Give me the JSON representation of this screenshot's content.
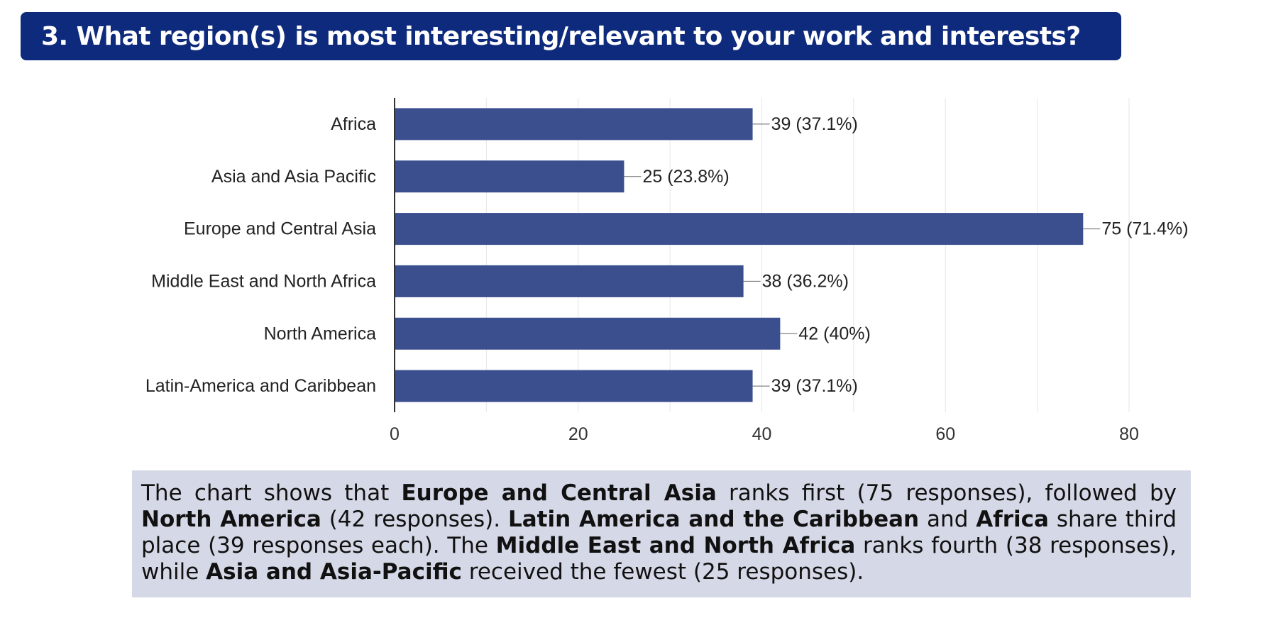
{
  "header": {
    "title": "3. What region(s) is most interesting/relevant to your work and interests?"
  },
  "chart_data": {
    "type": "bar",
    "orientation": "horizontal",
    "categories": [
      "Africa",
      "Asia and Asia Pacific",
      "Europe and Central Asia",
      "Middle East and North Africa",
      "North America",
      "Latin-America and Caribbean"
    ],
    "values": [
      39,
      25,
      75,
      38,
      42,
      39
    ],
    "data_labels": [
      "39 (37.1%)",
      "25 (23.8%)",
      "75 (71.4%)",
      "38 (36.2%)",
      "42 (40%)",
      "39 (37.1%)"
    ],
    "xlim": [
      0,
      80
    ],
    "xticks": [
      "0",
      "20",
      "40",
      "60",
      "80"
    ],
    "grid": true,
    "bar_color": "#3b4f8e",
    "title": "",
    "xlabel": "",
    "ylabel": ""
  },
  "summary": {
    "segments": [
      {
        "text": "The chart shows that ",
        "bold": false
      },
      {
        "text": "Europe and Central Asia",
        "bold": true
      },
      {
        "text": " ranks first (75 responses), followed by ",
        "bold": false
      },
      {
        "text": "North America",
        "bold": true
      },
      {
        "text": " (42 responses). ",
        "bold": false
      },
      {
        "text": "Latin America and the Caribbean",
        "bold": true
      },
      {
        "text": " and ",
        "bold": false
      },
      {
        "text": "Africa",
        "bold": true
      },
      {
        "text": " share third place (39 responses each). The ",
        "bold": false
      },
      {
        "text": "Middle East and North Africa",
        "bold": true
      },
      {
        "text": " ranks fourth (38 responses), while ",
        "bold": false
      },
      {
        "text": "Asia and Asia-Pacific",
        "bold": true
      },
      {
        "text": " received the fewest (25 responses).",
        "bold": false
      }
    ]
  },
  "colors": {
    "banner": "#0e2a7c",
    "bar": "#3b4f8e",
    "summary_bg": "#d5d8e6",
    "grid": "#e6e6e6"
  }
}
